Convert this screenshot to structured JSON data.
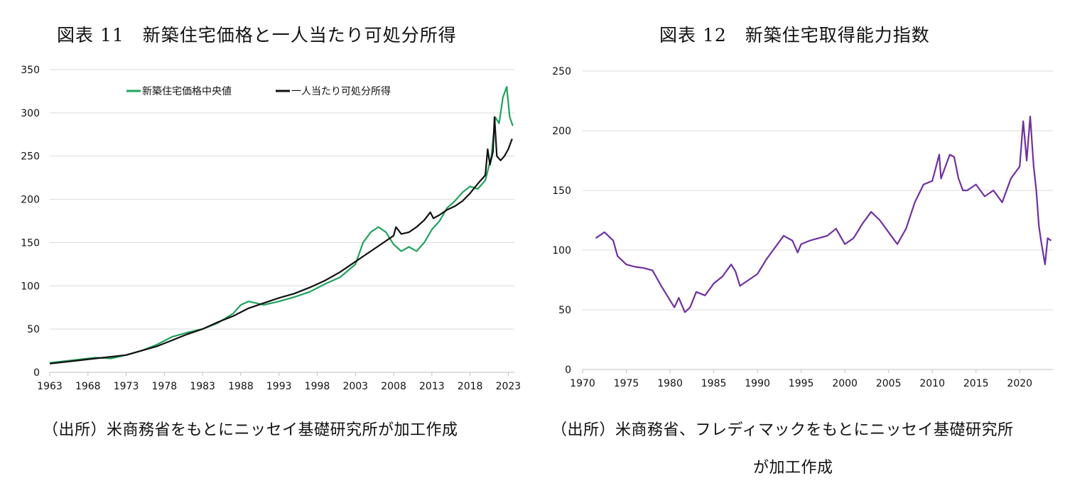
{
  "left": {
    "title": "図表 11　新築住宅価格と一人当たり可処分所得",
    "source": "（出所）米商務省をもとにニッセイ基礎研究所が加工作成"
  },
  "right": {
    "title": "図表 12　新築住宅取得能力指数",
    "source_line1": "（出所）米商務省、フレディマックをもとにニッセイ基礎研究所",
    "source_line2": "が加工作成"
  },
  "chart_data": [
    {
      "type": "line",
      "title": "図表 11　新築住宅価格と一人当たり可処分所得",
      "xlabel": "",
      "ylabel": "",
      "xlim": [
        1963,
        2023.8
      ],
      "ylim": [
        0,
        350
      ],
      "x_ticks": [
        1963,
        1968,
        1973,
        1978,
        1983,
        1988,
        1993,
        1998,
        2003,
        2008,
        2013,
        2018,
        2023
      ],
      "y_ticks": [
        0,
        50,
        100,
        150,
        200,
        250,
        300,
        350
      ],
      "grid": true,
      "legend_position": "top-center",
      "series": [
        {
          "name": "新築住宅価格中央値",
          "color": "#1fa35c",
          "x": [
            1963,
            1965,
            1967,
            1969,
            1971,
            1973,
            1975,
            1977,
            1979,
            1981,
            1983,
            1985,
            1987,
            1988,
            1989,
            1990,
            1991,
            1993,
            1995,
            1997,
            1999,
            2001,
            2003,
            2004,
            2005,
            2006,
            2007,
            2008,
            2009,
            2010,
            2011,
            2012,
            2013,
            2014,
            2015,
            2016,
            2017,
            2018,
            2019,
            2020,
            2020.8,
            2021.3,
            2021.8,
            2022.3,
            2022.8,
            2023.2,
            2023.6
          ],
          "y": [
            11,
            13,
            15,
            17,
            16,
            20,
            25,
            32,
            41,
            46,
            50,
            57,
            68,
            78,
            82,
            80,
            78,
            82,
            87,
            93,
            102,
            110,
            125,
            150,
            162,
            168,
            162,
            148,
            140,
            145,
            140,
            150,
            165,
            175,
            190,
            198,
            208,
            215,
            212,
            222,
            250,
            295,
            288,
            318,
            330,
            295,
            285
          ]
        },
        {
          "name": "一人当たり可処分所得",
          "color": "#111111",
          "x": [
            1963,
            1965,
            1967,
            1969,
            1971,
            1973,
            1975,
            1977,
            1979,
            1981,
            1983,
            1985,
            1987,
            1989,
            1991,
            1993,
            1995,
            1997,
            1999,
            2001,
            2003,
            2005,
            2007,
            2008,
            2008.3,
            2009,
            2010,
            2011,
            2012,
            2012.8,
            2013.2,
            2014,
            2015,
            2016,
            2017,
            2018,
            2019,
            2020,
            2020.3,
            2020.6,
            2021,
            2021.2,
            2021.5,
            2022,
            2022.5,
            2023,
            2023.5
          ],
          "y": [
            10,
            12,
            14,
            16,
            18,
            20,
            25,
            30,
            37,
            44,
            50,
            58,
            65,
            74,
            80,
            86,
            91,
            98,
            106,
            116,
            128,
            140,
            152,
            158,
            168,
            160,
            162,
            168,
            176,
            185,
            178,
            182,
            188,
            192,
            198,
            207,
            218,
            228,
            258,
            240,
            255,
            295,
            250,
            245,
            250,
            258,
            270
          ]
        }
      ]
    },
    {
      "type": "line",
      "title": "図表 12　新築住宅取得能力指数",
      "xlabel": "",
      "ylabel": "",
      "xlim": [
        1970,
        2023.8
      ],
      "ylim": [
        0,
        250
      ],
      "x_ticks": [
        1970,
        1975,
        1980,
        1985,
        1990,
        1995,
        2000,
        2005,
        2010,
        2015,
        2020
      ],
      "y_ticks": [
        0,
        50,
        100,
        150,
        200,
        250
      ],
      "grid": true,
      "series": [
        {
          "name": "",
          "color": "#7030a0",
          "x": [
            1971.5,
            1972.5,
            1973.5,
            1974,
            1975,
            1976,
            1977,
            1978,
            1979,
            1980,
            1980.5,
            1981,
            1981.7,
            1982.3,
            1983,
            1984,
            1985,
            1986,
            1987,
            1987.5,
            1988,
            1989,
            1990,
            1991,
            1992,
            1993,
            1994,
            1994.6,
            1995,
            1996,
            1997,
            1998,
            1999,
            2000,
            2001,
            2002,
            2003,
            2004,
            2005,
            2006,
            2007,
            2008,
            2009,
            2010,
            2010.8,
            2011,
            2012,
            2012.5,
            2013,
            2013.5,
            2014,
            2015,
            2016,
            2017,
            2018,
            2019,
            2020,
            2020.4,
            2020.8,
            2021.2,
            2021.6,
            2021.9,
            2022.2,
            2022.5,
            2022.9,
            2023.2,
            2023.6
          ],
          "y": [
            110,
            115,
            108,
            95,
            88,
            86,
            85,
            83,
            70,
            58,
            52,
            60,
            48,
            52,
            65,
            62,
            72,
            78,
            88,
            82,
            70,
            75,
            80,
            92,
            102,
            112,
            108,
            98,
            105,
            108,
            110,
            112,
            118,
            105,
            110,
            122,
            132,
            125,
            115,
            105,
            118,
            140,
            155,
            158,
            180,
            160,
            180,
            178,
            160,
            150,
            150,
            155,
            145,
            150,
            140,
            160,
            170,
            208,
            175,
            212,
            170,
            150,
            120,
            105,
            88,
            110,
            108
          ]
        }
      ]
    }
  ]
}
